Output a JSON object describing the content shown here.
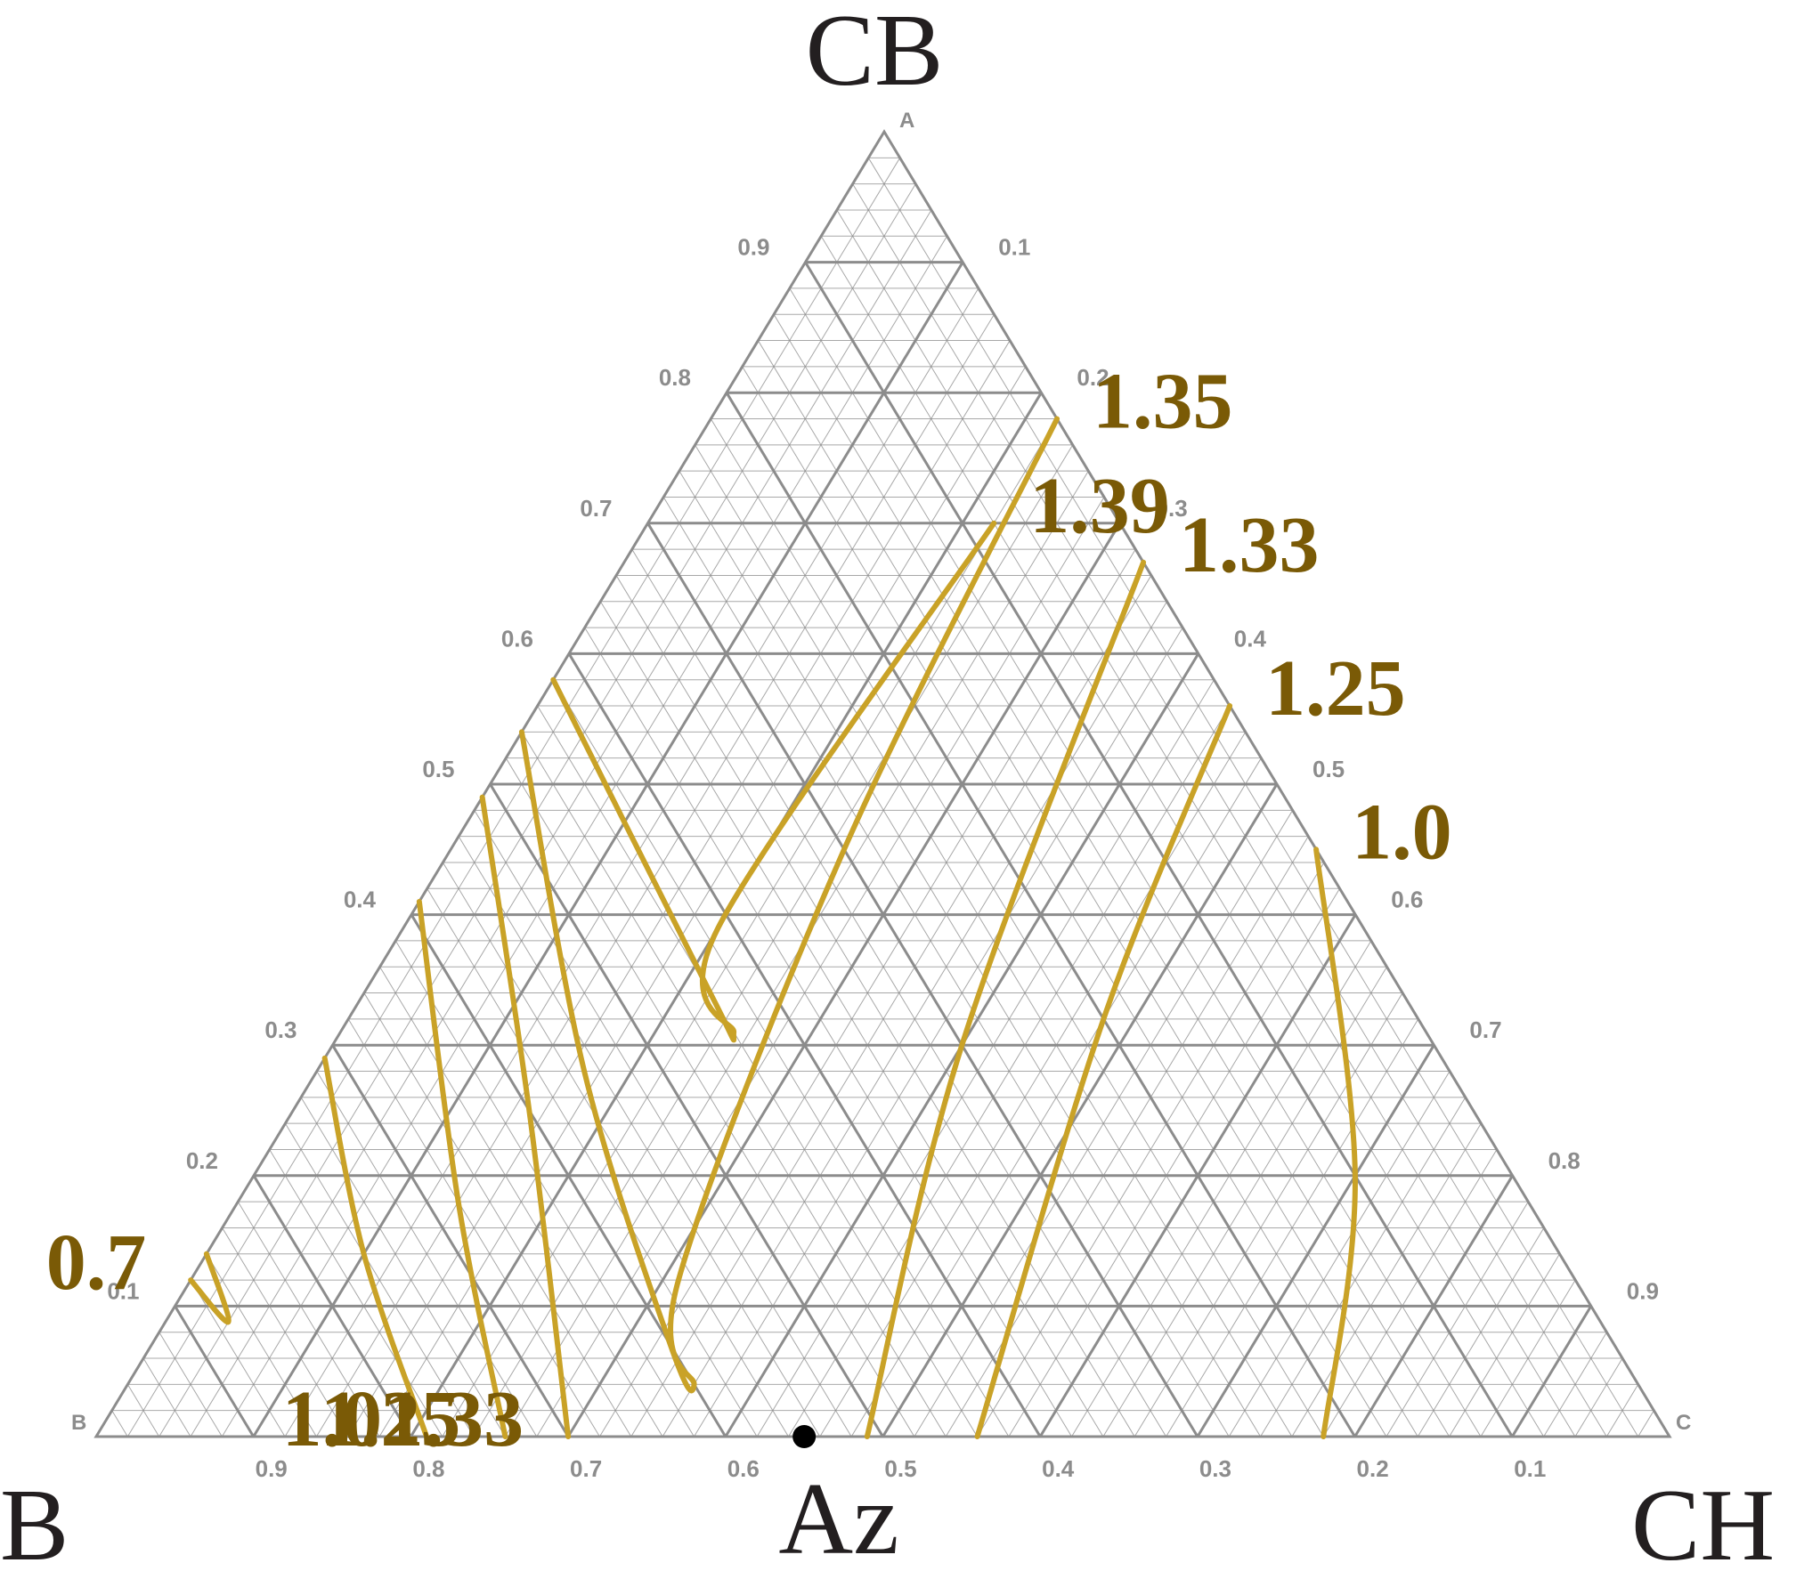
{
  "chart_data": {
    "type": "ternary-contour",
    "corners": {
      "top": {
        "title": "CB",
        "tag": "A"
      },
      "left": {
        "title": "B",
        "tag": "B"
      },
      "right": {
        "title": "CH",
        "tag": "C"
      }
    },
    "edge_titles": {
      "bottom": "Az"
    },
    "ticks": [
      "0.1",
      "0.2",
      "0.3",
      "0.4",
      "0.5",
      "0.6",
      "0.7",
      "0.8",
      "0.9"
    ],
    "grid": {
      "major_step": 0.1,
      "minor_step": 0.02
    },
    "azeotrope_point": {
      "label": "Az",
      "cb": 0.0,
      "ch": 0.45,
      "b": 0.55
    },
    "colors": {
      "contour": "#c9a227",
      "label": "#7a5a06",
      "grid": "#8c8c8c",
      "point": "#000000"
    },
    "contours": [
      {
        "label": "0.7",
        "points": [
          [
            0.86,
            0.0
          ],
          [
            0.872,
            0.04
          ],
          [
            0.88,
            0.0
          ]
        ]
      },
      {
        "label": "1.0",
        "points": [
          [
            0.71,
            0.0
          ],
          [
            0.76,
            0.1
          ],
          [
            0.79,
            0.21
          ]
        ]
      },
      {
        "label": "1.25",
        "points": [
          [
            0.59,
            0.0
          ],
          [
            0.68,
            0.14
          ],
          [
            0.74,
            0.26
          ]
        ]
      },
      {
        "label": "1.33",
        "points": [
          [
            0.51,
            0.0
          ],
          [
            0.6,
            0.15
          ],
          [
            0.7,
            0.3
          ]
        ]
      },
      {
        "label": "1.35",
        "points": [
          [
            0.46,
            0.0
          ],
          [
            0.55,
            0.17
          ],
          [
            0.6,
            0.33
          ],
          [
            0.6,
            0.36
          ],
          [
            0.57,
            0.31
          ],
          [
            0.3,
            0.25
          ],
          [
            0.0,
            0.22
          ]
        ]
      },
      {
        "label": "1.39",
        "points": [
          [
            0.42,
            0.0
          ],
          [
            0.44,
            0.22
          ],
          [
            0.44,
            0.25
          ],
          [
            0.41,
            0.2
          ],
          [
            0.08,
            0.22
          ]
        ]
      },
      {
        "label": "1.33",
        "points": [
          [
            0.51,
            0.49
          ],
          [
            0.3,
            0.4
          ],
          [
            0.0,
            0.33
          ]
        ]
      },
      {
        "label": "1.25",
        "points": [
          [
            0.44,
            0.56
          ],
          [
            0.2,
            0.48
          ],
          [
            0.0,
            0.44
          ]
        ]
      },
      {
        "label": "1.0",
        "points": [
          [
            0.22,
            0.78
          ],
          [
            0.1,
            0.7
          ],
          [
            0.0,
            0.55
          ]
        ]
      }
    ]
  }
}
